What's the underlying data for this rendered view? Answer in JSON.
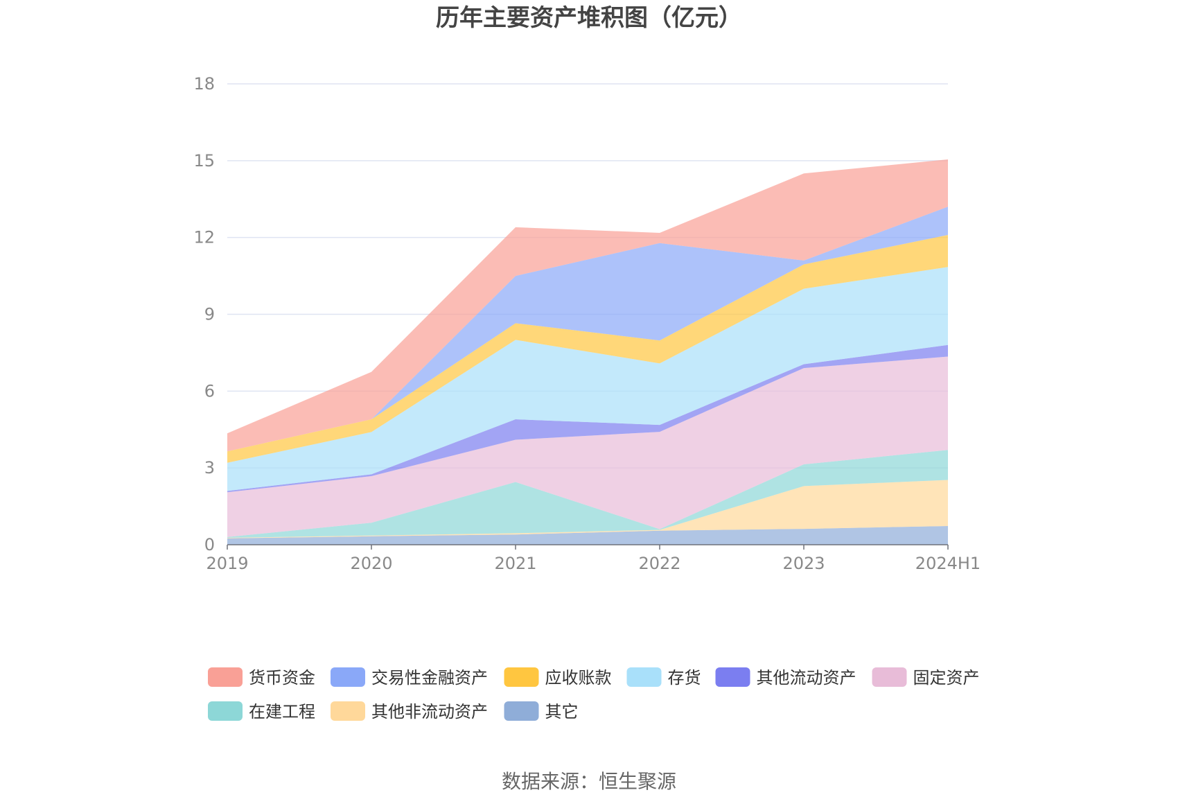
{
  "chart_data": {
    "type": "area",
    "stacked": true,
    "title": "历年主要资产堆积图（亿元）",
    "categories": [
      "2019",
      "2020",
      "2021",
      "2022",
      "2023",
      "2024H1"
    ],
    "ylim": [
      0,
      18
    ],
    "yticks": [
      0,
      3,
      6,
      9,
      12,
      15,
      18
    ],
    "grid": true,
    "legend_position": "bottom",
    "series": [
      {
        "name": "其它",
        "color": "#8fadd8",
        "values": [
          0.25,
          0.33,
          0.4,
          0.55,
          0.62,
          0.73
        ]
      },
      {
        "name": "其他非流动资产",
        "color": "#ffd89a",
        "values": [
          0.02,
          0.03,
          0.05,
          0.03,
          1.67,
          1.8
        ]
      },
      {
        "name": "在建工程",
        "color": "#8dd7d7",
        "values": [
          0.03,
          0.5,
          2.0,
          0.03,
          0.85,
          1.17
        ]
      },
      {
        "name": "固定资产",
        "color": "#e8bcd8",
        "values": [
          1.75,
          1.82,
          1.65,
          3.8,
          3.76,
          3.65
        ]
      },
      {
        "name": "其他流动资产",
        "color": "#7b7ef0",
        "values": [
          0.05,
          0.07,
          0.8,
          0.27,
          0.15,
          0.45
        ]
      },
      {
        "name": "存货",
        "color": "#a9e0fa",
        "values": [
          1.1,
          1.65,
          3.1,
          2.4,
          2.95,
          3.05
        ]
      },
      {
        "name": "应收账款",
        "color": "#ffc640",
        "values": [
          0.45,
          0.5,
          0.65,
          0.9,
          0.95,
          1.25
        ]
      },
      {
        "name": "交易性金融资产",
        "color": "#8aa8f8",
        "values": [
          0.0,
          0.0,
          1.85,
          3.8,
          0.15,
          1.1
        ]
      },
      {
        "name": "货币资金",
        "color": "#f9a096",
        "values": [
          0.7,
          1.85,
          1.9,
          0.4,
          3.4,
          1.85
        ]
      }
    ]
  },
  "legend_order": [
    "货币资金",
    "交易性金融资产",
    "应收账款",
    "存货",
    "其他流动资产",
    "固定资产",
    "在建工程",
    "其他非流动资产",
    "其它"
  ],
  "source": "数据来源：恒生聚源"
}
